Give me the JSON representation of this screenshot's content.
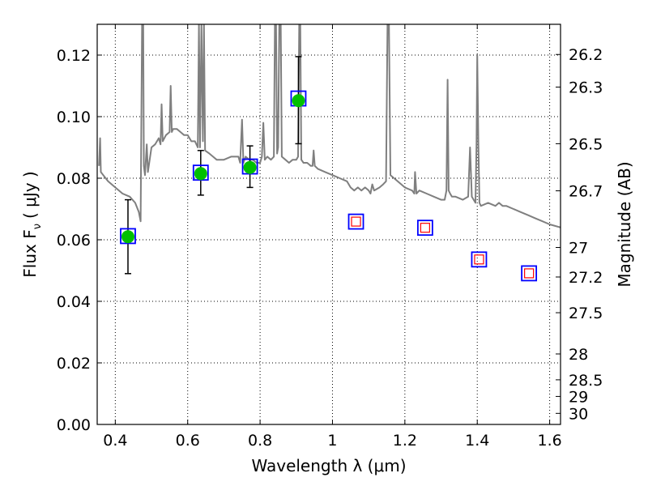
{
  "chart_data": {
    "type": "scatter",
    "xlabel": "Wavelength  λ (μm)",
    "ylabel": "Flux  F",
    "ylabel_sub": "ν",
    "ylabel_unit": "( μJy )",
    "y2label": "Magnitude (AB)",
    "xlim": [
      0.35,
      1.63
    ],
    "ylim": [
      0.0,
      0.13
    ],
    "grid": true,
    "x_ticks": [
      0.4,
      0.6,
      0.8,
      1.0,
      1.2,
      1.4,
      1.6
    ],
    "x_tick_labels": [
      "0.4",
      "0.6",
      "0.8",
      "1",
      "1.2",
      "1.4",
      "1.6"
    ],
    "y_ticks": [
      0.0,
      0.02,
      0.04,
      0.06,
      0.08,
      0.1,
      0.12
    ],
    "y_tick_labels": [
      "0.00",
      "0.02",
      "0.04",
      "0.06",
      "0.08",
      "0.10",
      "0.12"
    ],
    "mag_ticks": [
      {
        "label": "26.2",
        "flux": 0.1202
      },
      {
        "label": "26.3",
        "flux": 0.1096
      },
      {
        "label": "26.5",
        "flux": 0.0912
      },
      {
        "label": "26.7",
        "flux": 0.0759
      },
      {
        "label": "27",
        "flux": 0.0575
      },
      {
        "label": "27.2",
        "flux": 0.0479
      },
      {
        "label": "27.5",
        "flux": 0.0363
      },
      {
        "label": "28",
        "flux": 0.0229
      },
      {
        "label": "28.5",
        "flux": 0.0145
      },
      {
        "label": "29",
        "flux": 0.0091
      },
      {
        "label": "30",
        "flux": 0.0036
      }
    ],
    "series": [
      {
        "kind": "model-sed",
        "color": "#7f7f7f",
        "points": [
          [
            0.355,
            0.084
          ],
          [
            0.358,
            0.093
          ],
          [
            0.36,
            0.082
          ],
          [
            0.38,
            0.079
          ],
          [
            0.4,
            0.077
          ],
          [
            0.42,
            0.075
          ],
          [
            0.44,
            0.074
          ],
          [
            0.455,
            0.072
          ],
          [
            0.465,
            0.069
          ],
          [
            0.47,
            0.066
          ],
          [
            0.474,
            0.13
          ],
          [
            0.477,
            0.13
          ],
          [
            0.479,
            0.084
          ],
          [
            0.482,
            0.081
          ],
          [
            0.487,
            0.091
          ],
          [
            0.49,
            0.082
          ],
          [
            0.5,
            0.09
          ],
          [
            0.51,
            0.091
          ],
          [
            0.52,
            0.093
          ],
          [
            0.525,
            0.091
          ],
          [
            0.528,
            0.104
          ],
          [
            0.531,
            0.092
          ],
          [
            0.54,
            0.094
          ],
          [
            0.55,
            0.095
          ],
          [
            0.553,
            0.11
          ],
          [
            0.556,
            0.095
          ],
          [
            0.56,
            0.096
          ],
          [
            0.57,
            0.096
          ],
          [
            0.58,
            0.095
          ],
          [
            0.59,
            0.094
          ],
          [
            0.6,
            0.094
          ],
          [
            0.61,
            0.092
          ],
          [
            0.62,
            0.092
          ],
          [
            0.628,
            0.09
          ],
          [
            0.631,
            0.13
          ],
          [
            0.634,
            0.09
          ],
          [
            0.638,
            0.13
          ],
          [
            0.642,
            0.092
          ],
          [
            0.645,
            0.13
          ],
          [
            0.648,
            0.089
          ],
          [
            0.66,
            0.088
          ],
          [
            0.67,
            0.087
          ],
          [
            0.68,
            0.086
          ],
          [
            0.69,
            0.086
          ],
          [
            0.7,
            0.086
          ],
          [
            0.72,
            0.087
          ],
          [
            0.74,
            0.087
          ],
          [
            0.745,
            0.085
          ],
          [
            0.75,
            0.099
          ],
          [
            0.754,
            0.085
          ],
          [
            0.76,
            0.087
          ],
          [
            0.77,
            0.086
          ],
          [
            0.78,
            0.086
          ],
          [
            0.79,
            0.085
          ],
          [
            0.8,
            0.085
          ],
          [
            0.805,
            0.087
          ],
          [
            0.809,
            0.098
          ],
          [
            0.813,
            0.086
          ],
          [
            0.82,
            0.087
          ],
          [
            0.83,
            0.086
          ],
          [
            0.838,
            0.087
          ],
          [
            0.841,
            0.13
          ],
          [
            0.844,
            0.13
          ],
          [
            0.847,
            0.088
          ],
          [
            0.85,
            0.09
          ],
          [
            0.853,
            0.13
          ],
          [
            0.857,
            0.13
          ],
          [
            0.86,
            0.087
          ],
          [
            0.87,
            0.086
          ],
          [
            0.88,
            0.085
          ],
          [
            0.89,
            0.086
          ],
          [
            0.9,
            0.086
          ],
          [
            0.905,
            0.087
          ],
          [
            0.908,
            0.13
          ],
          [
            0.911,
            0.13
          ],
          [
            0.914,
            0.086
          ],
          [
            0.92,
            0.085
          ],
          [
            0.93,
            0.085
          ],
          [
            0.94,
            0.084
          ],
          [
            0.945,
            0.084
          ],
          [
            0.948,
            0.089
          ],
          [
            0.951,
            0.084
          ],
          [
            0.96,
            0.083
          ],
          [
            0.98,
            0.082
          ],
          [
            1.0,
            0.081
          ],
          [
            1.02,
            0.08
          ],
          [
            1.04,
            0.079
          ],
          [
            1.05,
            0.077
          ],
          [
            1.06,
            0.076
          ],
          [
            1.07,
            0.077
          ],
          [
            1.08,
            0.076
          ],
          [
            1.09,
            0.077
          ],
          [
            1.1,
            0.076
          ],
          [
            1.105,
            0.075
          ],
          [
            1.11,
            0.078
          ],
          [
            1.115,
            0.076
          ],
          [
            1.13,
            0.077
          ],
          [
            1.14,
            0.078
          ],
          [
            1.148,
            0.079
          ],
          [
            1.152,
            0.13
          ],
          [
            1.156,
            0.13
          ],
          [
            1.16,
            0.081
          ],
          [
            1.18,
            0.079
          ],
          [
            1.2,
            0.077
          ],
          [
            1.22,
            0.076
          ],
          [
            1.226,
            0.075
          ],
          [
            1.228,
            0.082
          ],
          [
            1.232,
            0.075
          ],
          [
            1.24,
            0.076
          ],
          [
            1.26,
            0.075
          ],
          [
            1.28,
            0.074
          ],
          [
            1.3,
            0.073
          ],
          [
            1.31,
            0.073
          ],
          [
            1.315,
            0.076
          ],
          [
            1.318,
            0.112
          ],
          [
            1.321,
            0.076
          ],
          [
            1.325,
            0.075
          ],
          [
            1.33,
            0.074
          ],
          [
            1.34,
            0.074
          ],
          [
            1.36,
            0.073
          ],
          [
            1.375,
            0.074
          ],
          [
            1.38,
            0.09
          ],
          [
            1.385,
            0.074
          ],
          [
            1.395,
            0.072
          ],
          [
            1.398,
            0.091
          ],
          [
            1.4,
            0.12
          ],
          [
            1.403,
            0.091
          ],
          [
            1.406,
            0.072
          ],
          [
            1.41,
            0.071
          ],
          [
            1.43,
            0.072
          ],
          [
            1.45,
            0.071
          ],
          [
            1.46,
            0.072
          ],
          [
            1.47,
            0.071
          ],
          [
            1.48,
            0.071
          ],
          [
            1.5,
            0.07
          ],
          [
            1.52,
            0.069
          ],
          [
            1.54,
            0.068
          ],
          [
            1.56,
            0.067
          ],
          [
            1.58,
            0.066
          ],
          [
            1.6,
            0.065
          ],
          [
            1.63,
            0.064
          ]
        ]
      },
      {
        "kind": "model-box",
        "color": "#0000ff",
        "x": [
          0.435,
          0.636,
          0.772,
          0.906,
          1.065,
          1.256,
          1.405,
          1.543
        ],
        "y": [
          0.0612,
          0.0818,
          0.0838,
          0.1059,
          0.0659,
          0.0639,
          0.0536,
          0.0491
        ]
      },
      {
        "kind": "observed-detection",
        "color": "#00c000",
        "x": [
          0.435,
          0.636,
          0.772,
          0.906
        ],
        "y": [
          0.061,
          0.0815,
          0.0835,
          0.1052
        ],
        "err_low": [
          0.049,
          0.0745,
          0.077,
          0.0912
        ],
        "err_high": [
          0.073,
          0.089,
          0.0905,
          0.1195
        ]
      },
      {
        "kind": "model-nondetection-band",
        "color": "#ff0000",
        "x": [
          1.065,
          1.256,
          1.405,
          1.543
        ],
        "y": [
          0.0659,
          0.0639,
          0.0536,
          0.0491
        ]
      }
    ]
  },
  "colors": {
    "sed_line": "#7f7f7f",
    "box": "#0000ff",
    "detection": "#00c000",
    "nondetection": "#ff0000",
    "errorbar": "#000000"
  }
}
